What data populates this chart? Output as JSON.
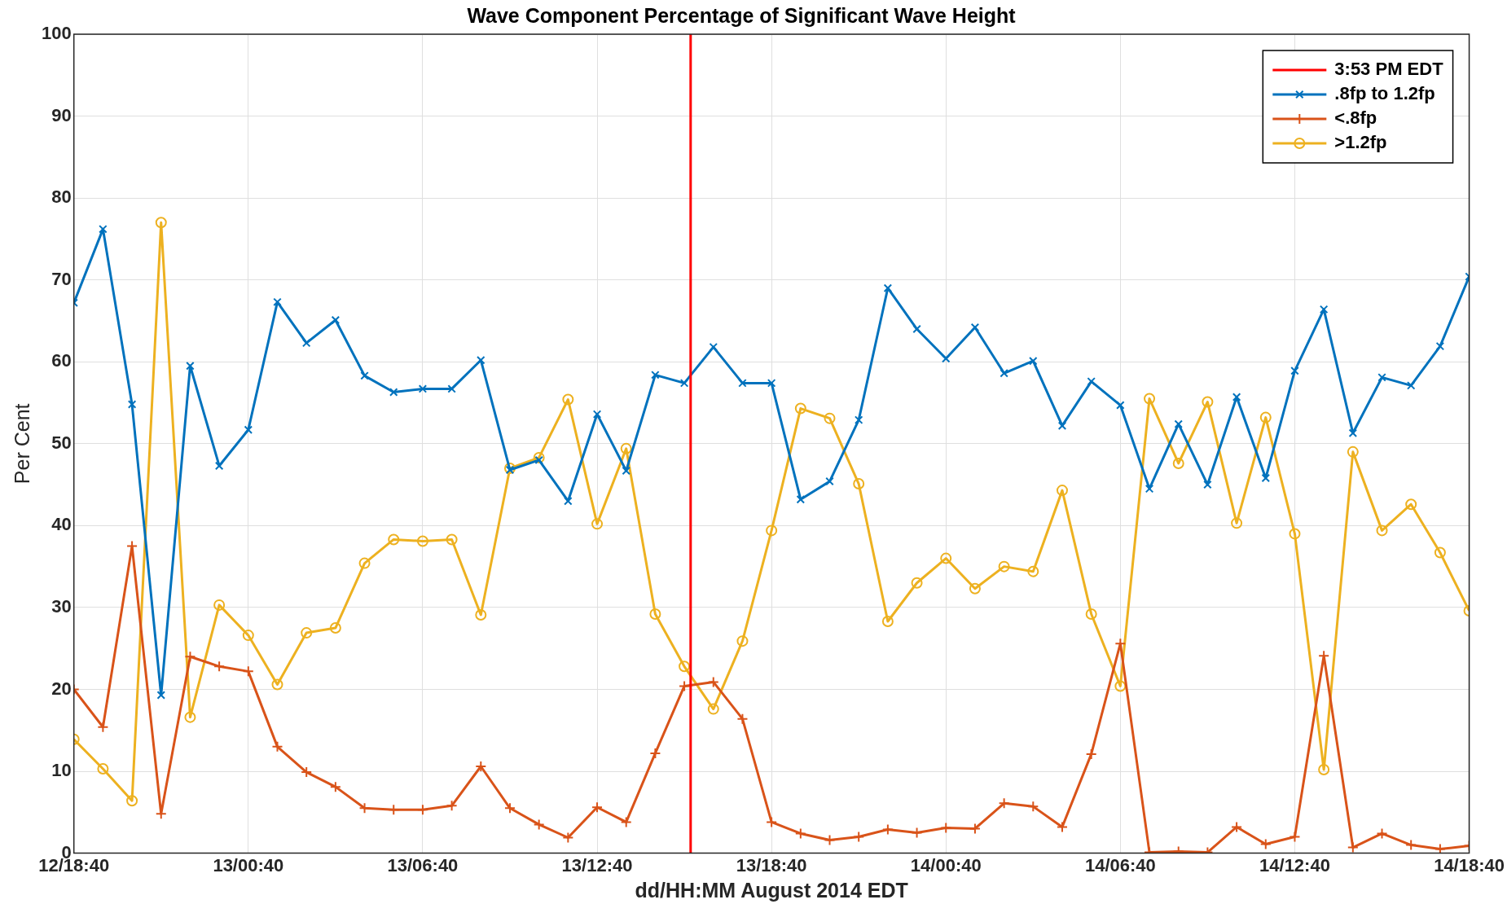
{
  "chart_data": {
    "type": "line",
    "title": "Wave Component Percentage of Significant Wave Height",
    "xlabel": "dd/HH:MM August 2014 EDT",
    "ylabel": "Per Cent",
    "x": [
      "2014-08-12T18:40",
      "2014-08-12T19:40",
      "2014-08-12T20:40",
      "2014-08-12T21:40",
      "2014-08-12T22:40",
      "2014-08-12T23:40",
      "2014-08-13T00:40",
      "2014-08-13T01:40",
      "2014-08-13T02:40",
      "2014-08-13T03:40",
      "2014-08-13T04:40",
      "2014-08-13T05:40",
      "2014-08-13T06:40",
      "2014-08-13T07:40",
      "2014-08-13T08:40",
      "2014-08-13T09:40",
      "2014-08-13T10:40",
      "2014-08-13T11:40",
      "2014-08-13T12:40",
      "2014-08-13T13:40",
      "2014-08-13T14:40",
      "2014-08-13T15:40",
      "2014-08-13T16:40",
      "2014-08-13T17:40",
      "2014-08-13T18:40",
      "2014-08-13T19:40",
      "2014-08-13T20:40",
      "2014-08-13T21:40",
      "2014-08-13T22:40",
      "2014-08-13T23:40",
      "2014-08-14T00:40",
      "2014-08-14T01:40",
      "2014-08-14T02:40",
      "2014-08-14T03:40",
      "2014-08-14T04:40",
      "2014-08-14T05:40",
      "2014-08-14T06:40",
      "2014-08-14T07:40",
      "2014-08-14T08:40",
      "2014-08-14T09:40",
      "2014-08-14T10:40",
      "2014-08-14T11:40",
      "2014-08-14T12:40",
      "2014-08-14T13:40",
      "2014-08-14T14:40",
      "2014-08-14T15:40",
      "2014-08-14T16:40",
      "2014-08-14T17:40",
      "2014-08-14T18:40"
    ],
    "xlim": [
      "2014-08-12T18:40",
      "2014-08-14T18:40"
    ],
    "xticks": [
      {
        "value": "2014-08-12T18:40",
        "label": "12/18:40"
      },
      {
        "value": "2014-08-13T00:40",
        "label": "13/00:40"
      },
      {
        "value": "2014-08-13T06:40",
        "label": "13/06:40"
      },
      {
        "value": "2014-08-13T12:40",
        "label": "13/12:40"
      },
      {
        "value": "2014-08-13T18:40",
        "label": "13/18:40"
      },
      {
        "value": "2014-08-14T00:40",
        "label": "14/00:40"
      },
      {
        "value": "2014-08-14T06:40",
        "label": "14/06:40"
      },
      {
        "value": "2014-08-14T12:40",
        "label": "14/12:40"
      },
      {
        "value": "2014-08-14T18:40",
        "label": "14/18:40"
      }
    ],
    "ylim": [
      0,
      100
    ],
    "yticks": [
      0,
      10,
      20,
      30,
      40,
      50,
      60,
      70,
      80,
      90,
      100
    ],
    "series": [
      {
        "name": "3:53 PM EDT",
        "color": "#ff0000",
        "marker": "none",
        "x": [
          "2014-08-13T15:53",
          "2014-08-13T15:53"
        ],
        "values": [
          0,
          100
        ]
      },
      {
        "name": ".8fp to 1.2fp",
        "color": "#0072bd",
        "marker": "cross",
        "values": [
          67.2,
          76.2,
          54.8,
          19.3,
          59.5,
          47.3,
          51.7,
          67.3,
          62.3,
          65.1,
          58.3,
          56.3,
          56.7,
          56.7,
          60.2,
          46.8,
          48,
          43,
          53.6,
          46.7,
          58.4,
          57.4,
          61.8,
          57.4,
          57.4,
          43.2,
          45.4,
          52.9,
          69,
          64,
          60.4,
          64.2,
          58.6,
          60.1,
          52.2,
          57.6,
          54.7,
          44.5,
          52.4,
          45,
          55.7,
          45.8,
          58.9,
          66.4,
          51.3,
          58.1,
          57.1,
          61.9,
          70.4
        ]
      },
      {
        "name": "<.8fp",
        "color": "#d95319",
        "marker": "plus",
        "values": [
          20,
          15.4,
          37.5,
          4.8,
          24,
          22.8,
          22.2,
          13,
          9.9,
          8.1,
          5.5,
          5.3,
          5.3,
          5.8,
          10.6,
          5.5,
          3.5,
          1.9,
          5.6,
          3.8,
          12.2,
          20.4,
          20.9,
          16.4,
          3.8,
          2.4,
          1.6,
          2,
          2.9,
          2.5,
          3.1,
          3,
          6.1,
          5.7,
          3.2,
          12.1,
          25.6,
          0.1,
          0.2,
          0.1,
          3.2,
          1.1,
          2,
          24.1,
          0.7,
          2.4,
          1,
          0.5,
          0.9
        ]
      },
      {
        "name": ">1.2fp",
        "color": "#edb120",
        "marker": "circle",
        "values": [
          13.9,
          10.3,
          6.4,
          77,
          16.6,
          30.3,
          26.6,
          20.6,
          26.9,
          27.5,
          35.4,
          38.3,
          38.1,
          38.3,
          29.1,
          47,
          48.3,
          55.4,
          40.2,
          49.4,
          29.2,
          22.8,
          17.6,
          25.9,
          39.4,
          54.3,
          53.1,
          45.1,
          28.3,
          33,
          36,
          32.3,
          35,
          34.4,
          44.3,
          29.2,
          20.4,
          55.5,
          47.6,
          55.1,
          40.3,
          53.2,
          39,
          10.2,
          49,
          39.4,
          42.6,
          36.7,
          29.6
        ]
      }
    ],
    "grid": true,
    "legend": "top right"
  }
}
